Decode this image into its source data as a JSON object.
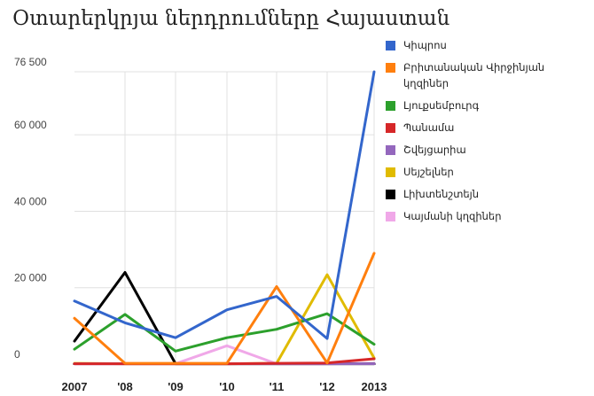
{
  "chart_data": {
    "type": "line",
    "title": "Օտարերկրյա ներդրումները Հայաստան",
    "xlabel": "",
    "ylabel": "",
    "categories": [
      "2007",
      "'08",
      "'09",
      "'10",
      "'11",
      "'12",
      "2013"
    ],
    "ylim": [
      0,
      76500
    ],
    "yticks": [
      0,
      20000,
      40000,
      60000,
      76500
    ],
    "ytick_labels": [
      "0",
      "20 000",
      "40 000",
      "60 000",
      "76 500"
    ],
    "grid": true,
    "legend_position": "right",
    "series": [
      {
        "name": "Կիպրոս",
        "color": "#3366cc",
        "values": [
          16500,
          10800,
          6900,
          14200,
          17700,
          6700,
          76500
        ]
      },
      {
        "name": "Բրիտանական Վիրջինյան կղզիներ",
        "color": "#ff7f0e",
        "values": [
          12000,
          200,
          200,
          200,
          20300,
          300,
          29000
        ]
      },
      {
        "name": "Լյուքսեմբուրգ",
        "color": "#2ca02c",
        "values": [
          3900,
          13000,
          3400,
          6900,
          9100,
          13200,
          5200
        ]
      },
      {
        "name": "Պանամա",
        "color": "#d62728",
        "values": [
          100,
          100,
          100,
          100,
          200,
          300,
          1400
        ]
      },
      {
        "name": "Շվեյցարիա",
        "color": "#9467bd",
        "values": [
          100,
          100,
          100,
          100,
          100,
          100,
          100
        ]
      },
      {
        "name": "Սեյշելներ",
        "color": "#e0bb00",
        "values": [
          200,
          100,
          100,
          100,
          200,
          23400,
          1600
        ]
      },
      {
        "name": "Լիխտենշտեյն",
        "color": "#000000",
        "values": [
          6000,
          24000,
          100,
          100,
          100,
          100,
          100
        ]
      },
      {
        "name": "Կայմանի կղզիներ",
        "color": "#f0a8e8",
        "values": [
          100,
          100,
          100,
          4800,
          100,
          100,
          200
        ]
      }
    ]
  }
}
